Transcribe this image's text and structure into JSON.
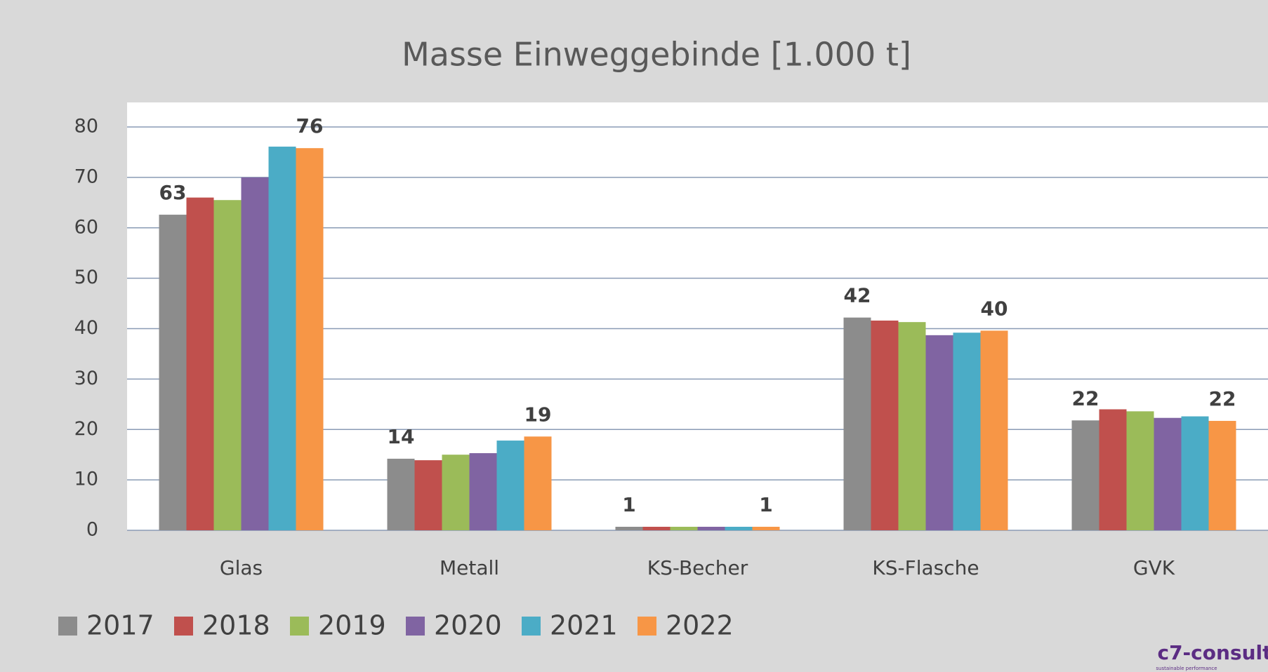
{
  "chart_data": {
    "type": "bar",
    "title": "Masse Einweggebinde [1.000 t]",
    "categories": [
      "Glas",
      "Metall",
      "KS-Becher",
      "KS-Flasche",
      "GVK"
    ],
    "series": [
      {
        "name": "2017",
        "color": "#8c8c8c",
        "values": [
          62.6,
          14.2,
          0.7,
          42.2,
          21.8
        ],
        "value_labels": [
          "63",
          "14",
          "1",
          "42",
          "22"
        ]
      },
      {
        "name": "2018",
        "color": "#c0504d",
        "values": [
          66,
          13.9,
          0.7,
          41.6,
          24
        ]
      },
      {
        "name": "2019",
        "color": "#9bbb59",
        "values": [
          65.5,
          15,
          0.7,
          41.3,
          23.6
        ]
      },
      {
        "name": "2020",
        "color": "#8064a2",
        "values": [
          70,
          15.3,
          0.7,
          38.7,
          22.3
        ]
      },
      {
        "name": "2021",
        "color": "#4bacc6",
        "values": [
          76.1,
          17.8,
          0.7,
          39.2,
          22.6
        ]
      },
      {
        "name": "2022",
        "color": "#f79646",
        "values": [
          75.8,
          18.6,
          0.7,
          39.6,
          21.7
        ],
        "value_labels": [
          "76",
          "19",
          "1",
          "40",
          "22"
        ]
      }
    ],
    "ylim": [
      0,
      80
    ],
    "yticks": [
      0,
      10,
      20,
      30,
      40,
      50,
      60,
      70,
      80
    ],
    "grid": true,
    "legend": "bottom",
    "logo": "c7-consult",
    "logo_tagline": "sustainable performance"
  }
}
